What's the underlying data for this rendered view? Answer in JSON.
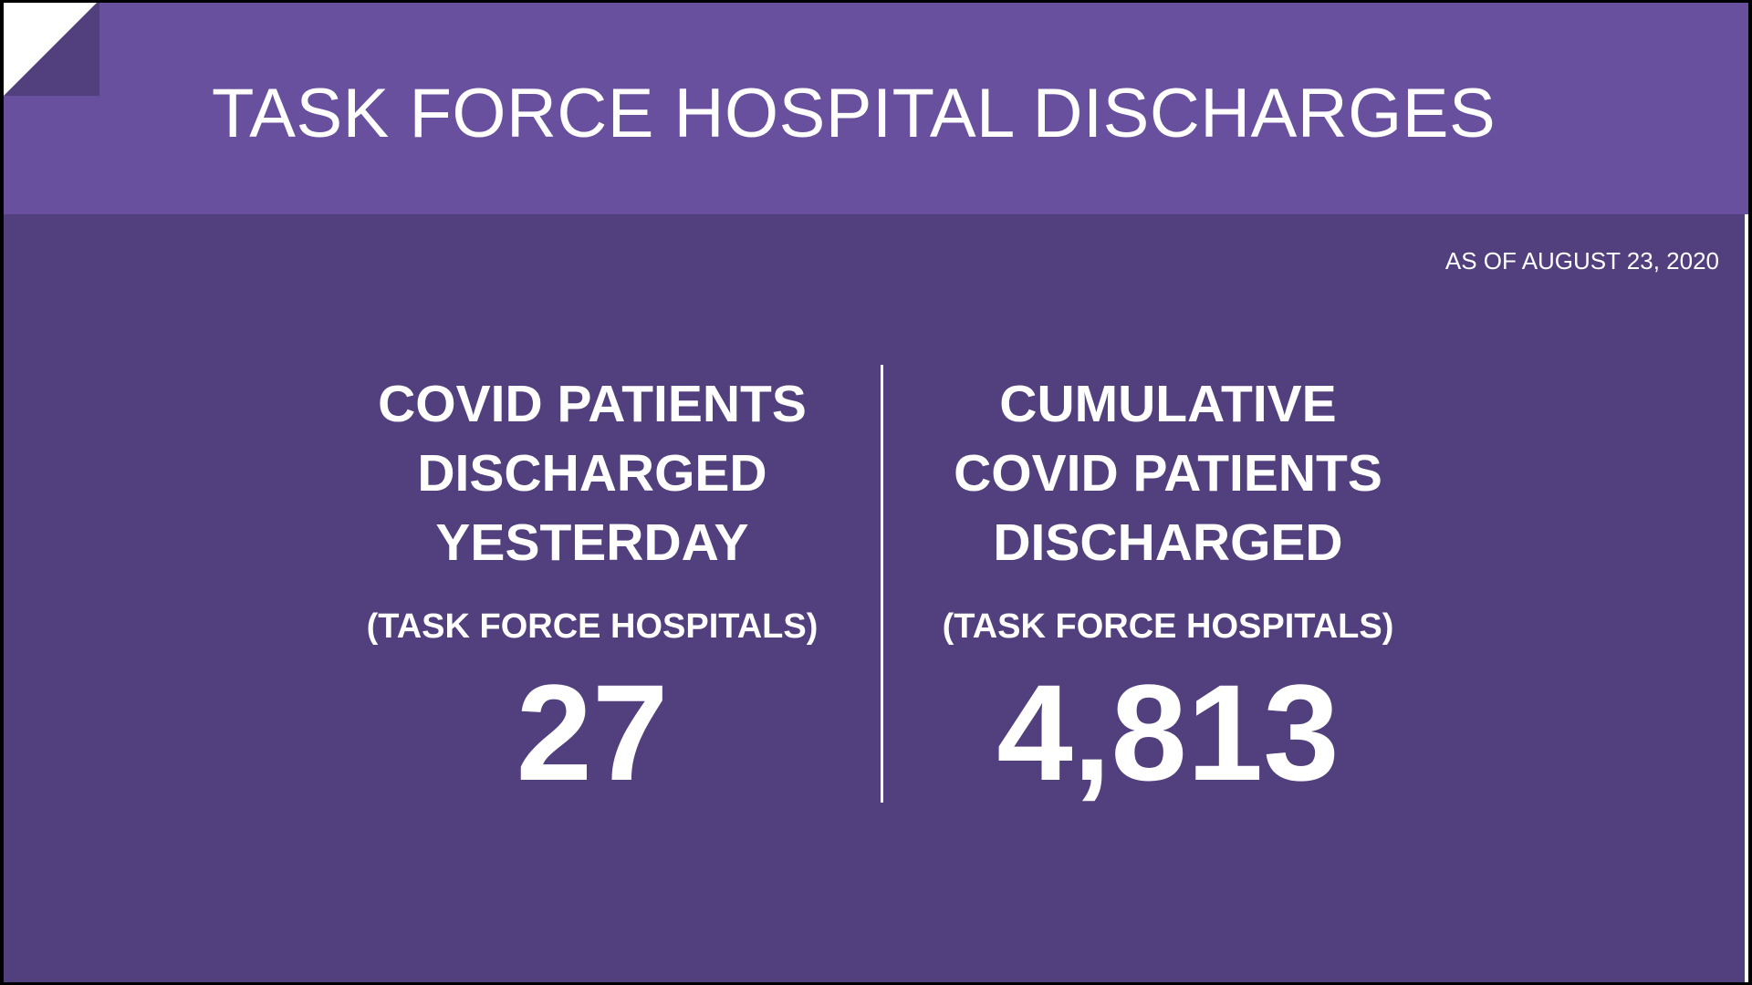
{
  "header": {
    "title": "TASK FORCE HOSPITAL DISCHARGES"
  },
  "as_of": "AS OF AUGUST 23, 2020",
  "stats": [
    {
      "heading_lines": [
        "COVID PATIENTS",
        "DISCHARGED",
        "YESTERDAY"
      ],
      "subheading": "(TASK FORCE HOSPITALS)",
      "value": "27"
    },
    {
      "heading_lines": [
        "CUMULATIVE",
        "COVID PATIENTS",
        "DISCHARGED"
      ],
      "subheading": "(TASK FORCE HOSPITALS)",
      "value": "4,813"
    }
  ],
  "colors": {
    "banner": "#68509f",
    "background": "#523f7e",
    "text": "#ffffff"
  }
}
